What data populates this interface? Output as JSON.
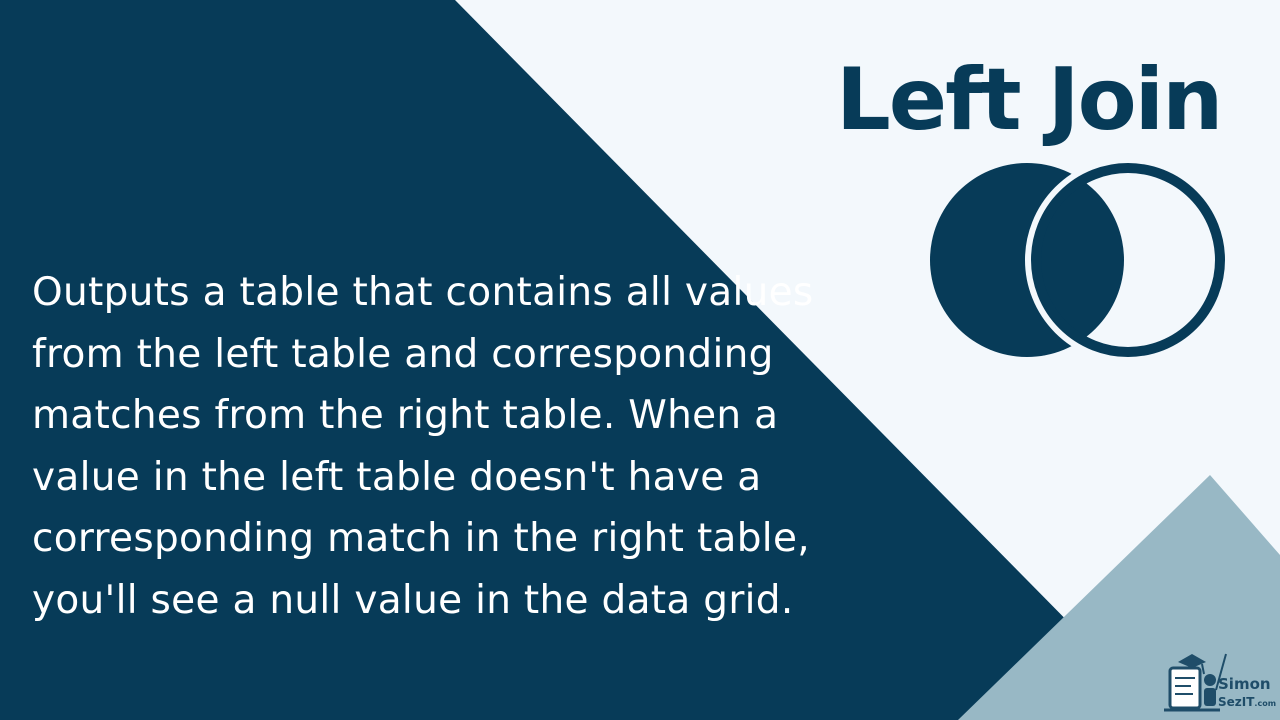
{
  "slide": {
    "title": "Left Join",
    "body": "Outputs a table that contains all values from the left table and corresponding matches from the right table. When a value in the left table doesn't have a corresponding match in the right table, you'll see a null value in the data grid.",
    "venn_icon": "left-join-venn-icon"
  },
  "logo": {
    "name": "Simon",
    "sub": "SezIT",
    "sub_suffix": ".com"
  },
  "colors": {
    "dark_navy": "#073b58",
    "light_background": "#f3f8fc",
    "accent_light_blue": "#98b8c5",
    "text_white": "#ffffff"
  }
}
